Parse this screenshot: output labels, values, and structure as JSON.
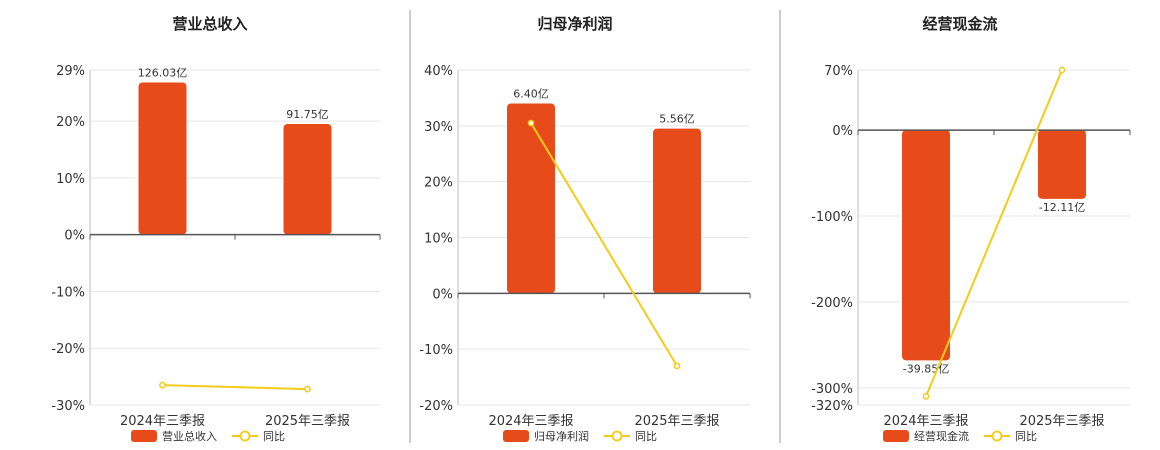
{
  "colors": {
    "bar": "#E84B1A",
    "line": "#F2CC18",
    "grid": "#E6E6E6",
    "axis": "#555555",
    "divider": "#999999"
  },
  "chart_data": [
    {
      "type": "bar",
      "title": "营业总收入",
      "categories": [
        "2024年三季报",
        "2025年三季报"
      ],
      "ylim": [
        -30,
        29
      ],
      "yticks": [
        29,
        20,
        10,
        0,
        -10,
        -20,
        -30
      ],
      "ytick_labels": [
        "29%",
        "20%",
        "10%",
        "0%",
        "-10%",
        "-20%",
        "-30%"
      ],
      "series": [
        {
          "name": "营业总收入",
          "kind": "bar",
          "values": [
            26.8,
            19.5
          ],
          "labels": [
            "126.03亿",
            "91.75亿"
          ]
        },
        {
          "name": "同比",
          "kind": "line",
          "values": [
            -26.5,
            -27.2
          ]
        }
      ],
      "grid": true,
      "legend": "bottom"
    },
    {
      "type": "bar",
      "title": "归母净利润",
      "categories": [
        "2024年三季报",
        "2025年三季报"
      ],
      "ylim": [
        -20,
        40
      ],
      "yticks": [
        40,
        30,
        20,
        10,
        0,
        -10,
        -20
      ],
      "ytick_labels": [
        "40%",
        "30%",
        "20%",
        "10%",
        "0%",
        "-10%",
        "-20%"
      ],
      "series": [
        {
          "name": "归母净利润",
          "kind": "bar",
          "values": [
            34.0,
            29.5
          ],
          "labels": [
            "6.40亿",
            "5.56亿"
          ]
        },
        {
          "name": "同比",
          "kind": "line",
          "values": [
            30.5,
            -13.0
          ]
        }
      ],
      "grid": true,
      "legend": "bottom"
    },
    {
      "type": "bar",
      "title": "经营现金流",
      "categories": [
        "2024年三季报",
        "2025年三季报"
      ],
      "ylim": [
        -320,
        70
      ],
      "yticks": [
        70,
        0,
        -100,
        -200,
        -300,
        -320
      ],
      "ytick_labels": [
        "70%",
        "0%",
        "-100%",
        "-200%",
        "-300%",
        "-320%"
      ],
      "series": [
        {
          "name": "经营现金流",
          "kind": "bar",
          "values": [
            -268,
            -80
          ],
          "labels": [
            "-39.85亿",
            "-12.11亿"
          ]
        },
        {
          "name": "同比",
          "kind": "line",
          "values": [
            -310,
            70
          ]
        }
      ],
      "grid": true,
      "legend": "bottom"
    }
  ]
}
